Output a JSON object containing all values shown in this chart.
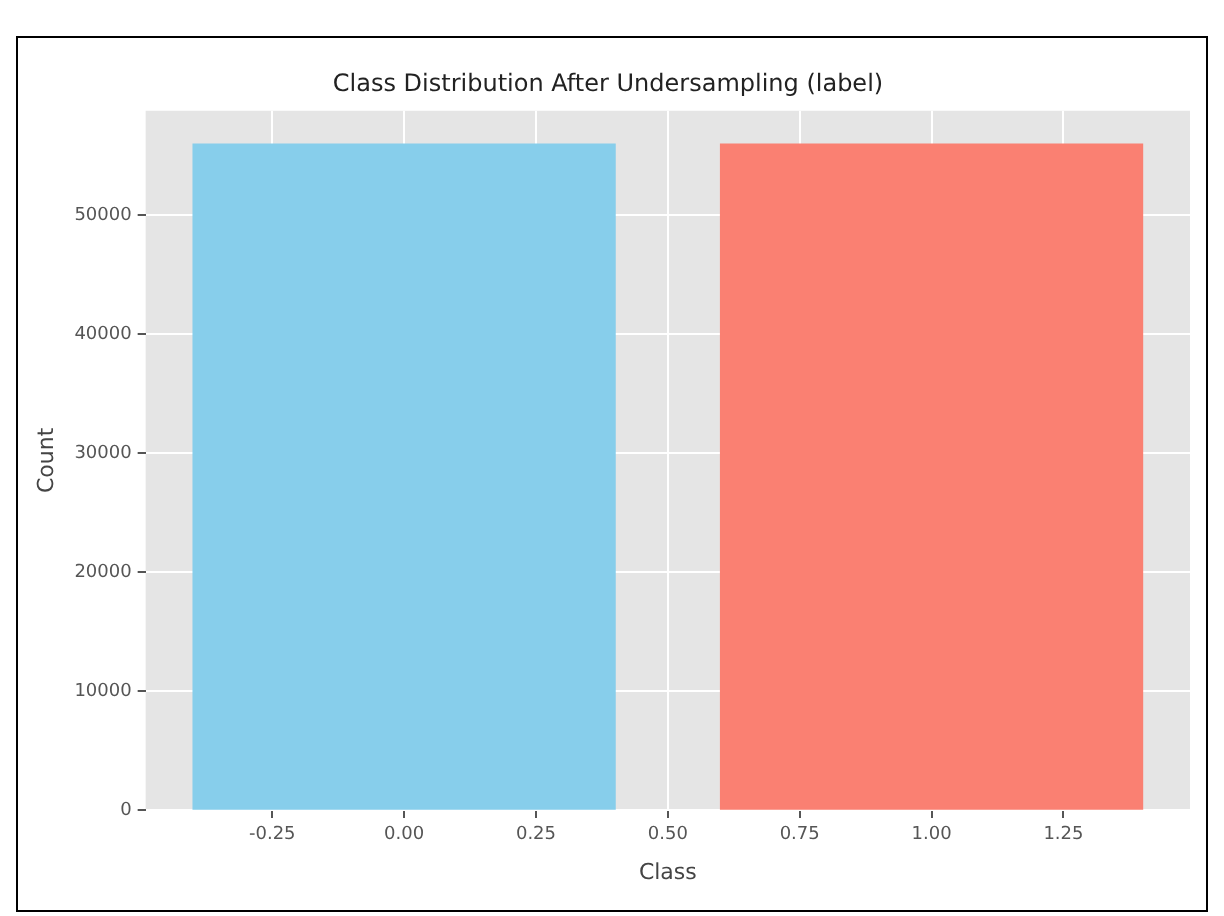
{
  "chart_data": {
    "type": "bar",
    "title": "Class Distribution After Undersampling (label)",
    "xlabel": "Class",
    "ylabel": "Count",
    "x": [
      0,
      1
    ],
    "values": [
      56000,
      56000
    ],
    "colors": [
      "#87ceeb",
      "#fa8072"
    ],
    "xlim": [
      -0.49,
      1.49
    ],
    "xticks": [
      {
        "value": -0.25,
        "label": "-0.25"
      },
      {
        "value": 0,
        "label": "0.00"
      },
      {
        "value": 0.25,
        "label": "0.25"
      },
      {
        "value": 0.5,
        "label": "0.50"
      },
      {
        "value": 0.75,
        "label": "0.75"
      },
      {
        "value": 1,
        "label": "1.00"
      },
      {
        "value": 1.25,
        "label": "1.25"
      }
    ],
    "ylim": [
      0,
      58800
    ],
    "yticks": [
      0,
      10000,
      20000,
      30000,
      40000,
      50000
    ],
    "grid": true,
    "legend": false
  }
}
